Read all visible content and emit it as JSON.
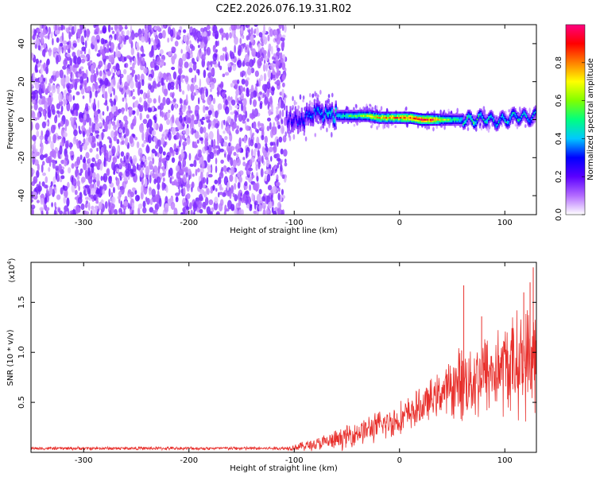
{
  "chart_data": [
    {
      "type": "heatmap",
      "title": "C2E2.2026.076.19.31.R02",
      "xlabel": "Height of straight line (km)",
      "ylabel": "Frequency (Hz)",
      "xlim": [
        -350,
        130
      ],
      "ylim": [
        -50,
        50
      ],
      "xticks": [
        -300,
        -200,
        -100,
        0,
        100
      ],
      "yticks": [
        -40,
        -20,
        0,
        20,
        40
      ],
      "noise_region_x": [
        -350,
        -108
      ],
      "gap_region_x": [
        -108,
        -100
      ],
      "signal_ridge": {
        "x": [
          -108,
          -100,
          -90,
          -80,
          -70,
          -60,
          -50,
          -40,
          -30,
          -20,
          -10,
          0,
          10,
          20,
          30,
          40,
          50,
          60,
          70,
          80,
          90,
          100,
          110,
          120,
          130
        ],
        "freq": [
          0,
          0,
          1,
          4,
          3,
          2,
          2,
          2,
          2,
          1,
          1,
          1,
          1,
          0,
          0,
          0,
          0,
          0,
          0,
          1,
          -1,
          0,
          2,
          1,
          2
        ],
        "amplitude": [
          0.25,
          0.3,
          0.35,
          0.4,
          0.45,
          0.5,
          0.55,
          0.6,
          0.7,
          0.8,
          0.85,
          0.9,
          0.95,
          1.0,
          0.95,
          0.7,
          0.55,
          0.5,
          0.55,
          0.5,
          0.45,
          0.5,
          0.5,
          0.45,
          0.4
        ]
      },
      "colorbar": {
        "label": "Normalized spectral amplitude",
        "range": [
          0,
          1
        ],
        "ticks": [
          "0.0",
          "0.2",
          "0.4",
          "0.6",
          "0.8"
        ],
        "colormap": [
          "#ffffff",
          "#b36bff",
          "#5b00ff",
          "#0000ff",
          "#00c8ff",
          "#00ff80",
          "#80ff00",
          "#ffff00",
          "#ff8000",
          "#ff0000",
          "#ff0080"
        ]
      }
    },
    {
      "type": "line",
      "title": "",
      "xlabel": "Height of straight line (km)",
      "ylabel": "SNR (10 * v/v)",
      "y_scale_label": "(x10^4)",
      "y_scale_base": "(x10",
      "y_scale_exp": "4",
      "xlim": [
        -350,
        130
      ],
      "ylim": [
        0,
        1.9
      ],
      "xticks": [
        -300,
        -200,
        -100,
        0,
        100
      ],
      "yticks": [
        "0.5",
        "1.0",
        "1.5"
      ],
      "ytick_values": [
        0.5,
        1.0,
        1.5
      ],
      "series": [
        {
          "name": "SNR",
          "color": "#e8302c",
          "envelope_x": [
            -350,
            -110,
            -100,
            -80,
            -60,
            -40,
            -20,
            0,
            20,
            40,
            60,
            80,
            100,
            130
          ],
          "envelope_mean": [
            0.04,
            0.04,
            0.05,
            0.08,
            0.12,
            0.2,
            0.26,
            0.33,
            0.45,
            0.6,
            0.7,
            0.78,
            0.85,
            0.95
          ],
          "envelope_spread": [
            0.02,
            0.02,
            0.04,
            0.08,
            0.12,
            0.15,
            0.18,
            0.2,
            0.22,
            0.25,
            0.45,
            0.5,
            0.55,
            0.7
          ],
          "peaks": [
            {
              "x": 59,
              "y": 1.02
            },
            {
              "x": 61,
              "y": 1.67
            },
            {
              "x": 78,
              "y": 1.36
            },
            {
              "x": 118,
              "y": 1.6
            },
            {
              "x": 124,
              "y": 1.7
            },
            {
              "x": 127,
              "y": 1.85
            }
          ]
        }
      ]
    }
  ]
}
